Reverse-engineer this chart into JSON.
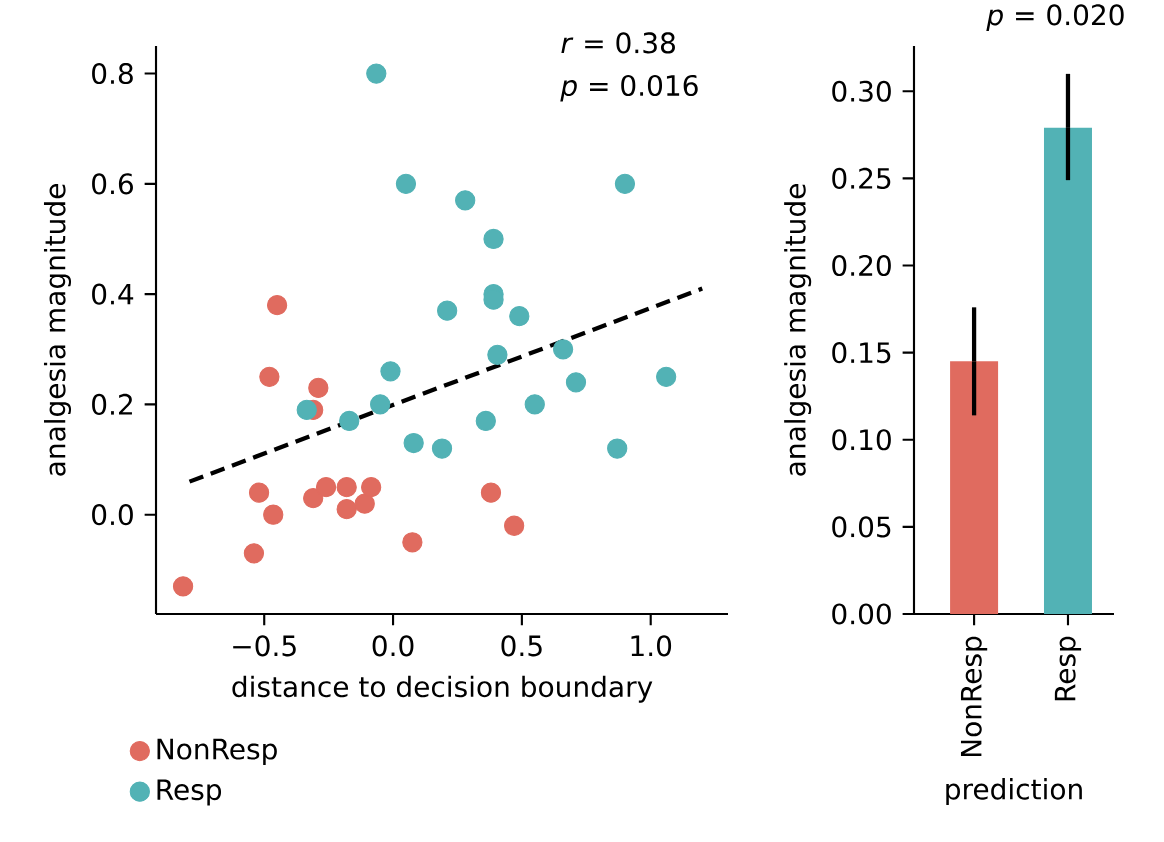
{
  "chart_data": [
    {
      "type": "scatter",
      "xlabel": "distance to decision boundary",
      "ylabel": "analgesia magnitude",
      "annotations": [
        "*r* = 0.38",
        "*p* = 0.016"
      ],
      "xlim": [
        -0.92,
        1.3
      ],
      "ylim": [
        -0.18,
        0.85
      ],
      "xticks": [
        {
          "value": -0.5,
          "label": "−0.5"
        },
        {
          "value": 0,
          "label": "0.0"
        },
        {
          "value": 0.5,
          "label": "0.5"
        },
        {
          "value": 1.0,
          "label": "1.0"
        }
      ],
      "yticks": [
        {
          "value": 0,
          "label": "0.0"
        },
        {
          "value": 0.2,
          "label": "0.2"
        },
        {
          "value": 0.4,
          "label": "0.4"
        },
        {
          "value": 0.6,
          "label": "0.6"
        },
        {
          "value": 0.8,
          "label": "0.8"
        }
      ],
      "marker": "circle",
      "legend": "bottom left",
      "grid": false,
      "series": [
        {
          "name": "NonResp",
          "color": "#e06b5f",
          "x": [
            -0.815,
            -0.54,
            -0.52,
            -0.465,
            -0.48,
            -0.45,
            -0.31,
            -0.31,
            -0.29,
            -0.26,
            -0.18,
            -0.18,
            -0.11,
            -0.085,
            0.075,
            0.38,
            0.47
          ],
          "values": [
            -0.13,
            -0.07,
            0.04,
            0.0,
            0.25,
            0.38,
            0.03,
            0.19,
            0.23,
            0.05,
            0.05,
            0.01,
            0.02,
            0.05,
            -0.05,
            0.04,
            -0.02
          ]
        },
        {
          "name": "Resp",
          "color": "#52b2b5",
          "x": [
            -0.335,
            -0.17,
            -0.05,
            -0.065,
            -0.01,
            0.05,
            0.08,
            0.19,
            0.21,
            0.28,
            0.36,
            0.39,
            0.39,
            0.39,
            0.405,
            0.49,
            0.55,
            0.66,
            0.71,
            0.87,
            0.9,
            1.06
          ],
          "values": [
            0.19,
            0.17,
            0.2,
            0.8,
            0.26,
            0.6,
            0.13,
            0.12,
            0.37,
            0.57,
            0.17,
            0.5,
            0.4,
            0.39,
            0.29,
            0.36,
            0.2,
            0.3,
            0.24,
            0.12,
            0.6,
            0.25
          ]
        },
        {
          "type": "line",
          "color": "#000000",
          "line_style": "dashed",
          "marker": "none",
          "x": [
            -0.79,
            1.2
          ],
          "values": [
            0.06,
            0.41
          ]
        }
      ]
    },
    {
      "type": "bar",
      "xlabel": "prediction",
      "ylabel": "analgesia magnitude",
      "annotations": [
        "*p* = 0.020"
      ],
      "categories": [
        "NonResp",
        "Resp"
      ],
      "values": [
        0.145,
        0.279
      ],
      "colors": [
        "#e06b5f",
        "#52b2b5"
      ],
      "errors": [
        [
          0.114,
          0.176
        ],
        [
          0.249,
          0.31
        ]
      ],
      "ylim": [
        0,
        0.326
      ],
      "yticks": [
        {
          "value": 0,
          "label": "0.00"
        },
        {
          "value": 0.05,
          "label": "0.05"
        },
        {
          "value": 0.1,
          "label": "0.10"
        },
        {
          "value": 0.15,
          "label": "0.15"
        },
        {
          "value": 0.2,
          "label": "0.20"
        },
        {
          "value": 0.25,
          "label": "0.25"
        },
        {
          "value": 0.3,
          "label": "0.30"
        }
      ]
    }
  ]
}
